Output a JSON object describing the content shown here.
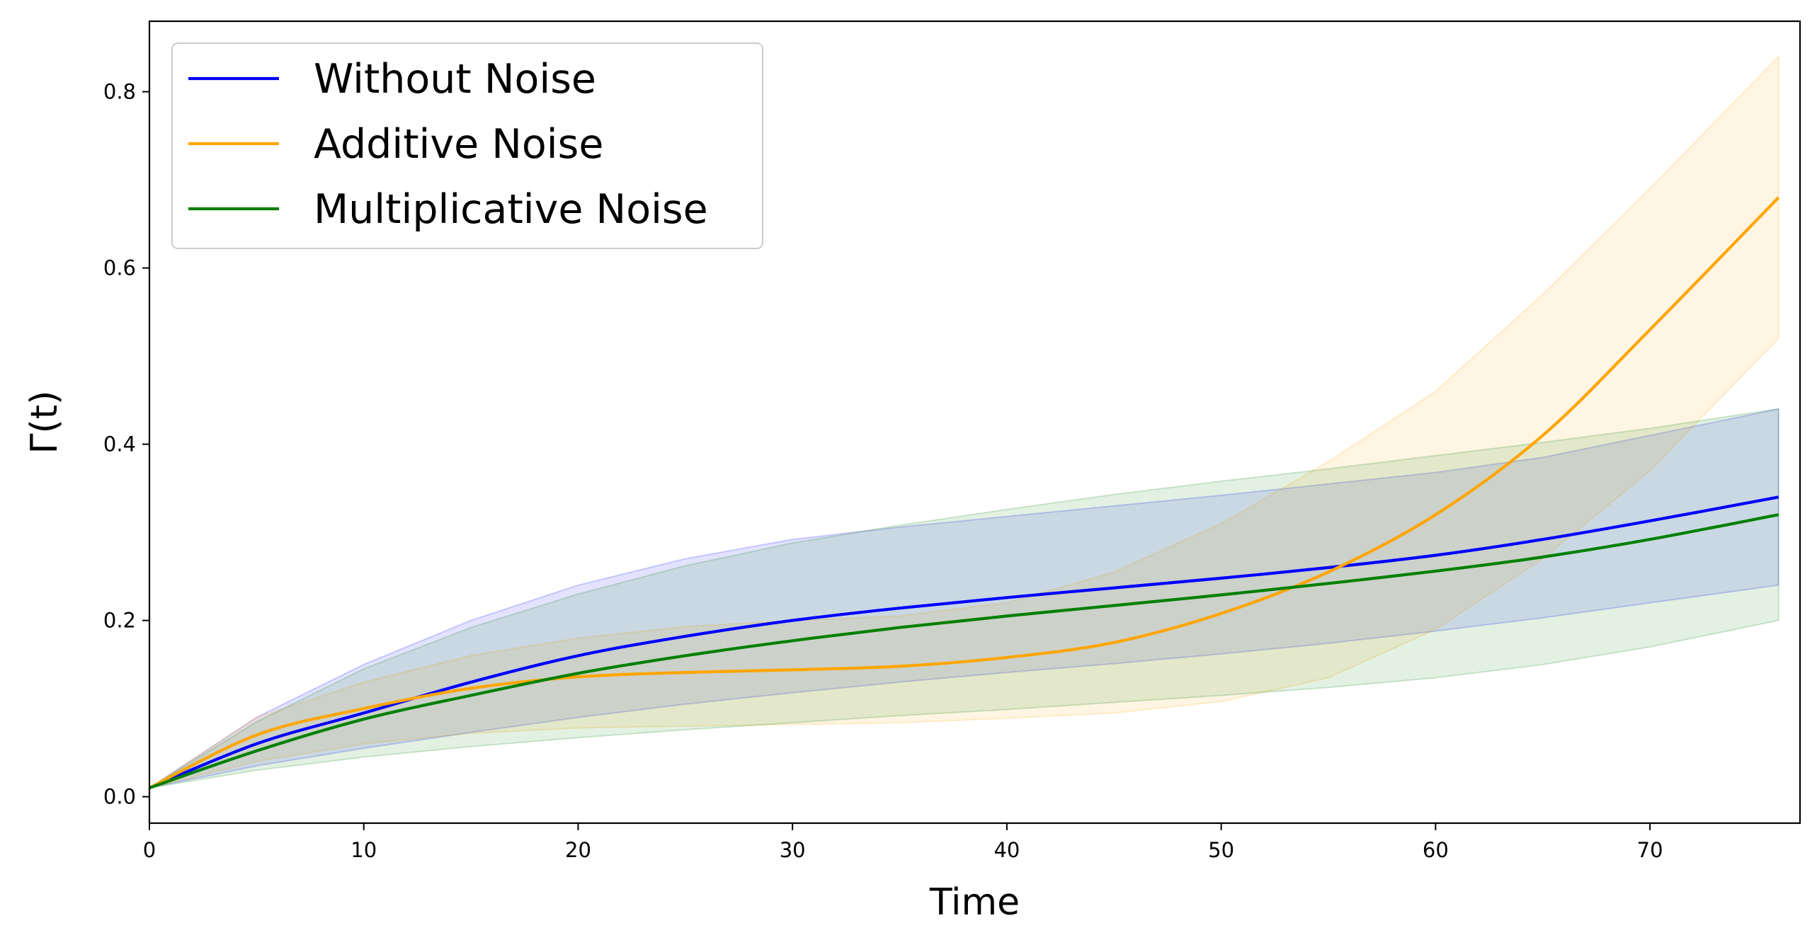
{
  "chart_data": {
    "type": "line",
    "xlabel": "Time",
    "ylabel": "Γ(t)",
    "xlim": [
      0,
      77
    ],
    "ylim": [
      -0.03,
      0.88
    ],
    "xticks": [
      0,
      10,
      20,
      30,
      40,
      50,
      60,
      70
    ],
    "yticks": [
      0.0,
      0.2,
      0.4,
      0.6,
      0.8
    ],
    "grid": false,
    "legend_position": "top-left",
    "x": [
      0,
      5,
      10,
      15,
      20,
      25,
      30,
      35,
      40,
      45,
      50,
      55,
      60,
      65,
      70,
      76
    ],
    "series": [
      {
        "name": "Without Noise",
        "color": "#0000ff",
        "values": [
          0.01,
          0.06,
          0.095,
          0.13,
          0.16,
          0.182,
          0.2,
          0.214,
          0.226,
          0.237,
          0.248,
          0.26,
          0.274,
          0.292,
          0.313,
          0.34
        ],
        "band_lower": [
          0.01,
          0.035,
          0.055,
          0.073,
          0.09,
          0.105,
          0.118,
          0.13,
          0.141,
          0.151,
          0.162,
          0.174,
          0.188,
          0.203,
          0.22,
          0.24
        ],
        "band_upper": [
          0.01,
          0.09,
          0.15,
          0.2,
          0.24,
          0.27,
          0.292,
          0.306,
          0.318,
          0.33,
          0.342,
          0.355,
          0.368,
          0.385,
          0.41,
          0.44
        ]
      },
      {
        "name": "Additive Noise",
        "color": "#ffa500",
        "values": [
          0.01,
          0.07,
          0.1,
          0.123,
          0.136,
          0.141,
          0.144,
          0.148,
          0.158,
          0.175,
          0.208,
          0.255,
          0.32,
          0.41,
          0.53,
          0.68
        ],
        "band_lower": [
          0.01,
          0.04,
          0.06,
          0.072,
          0.078,
          0.08,
          0.082,
          0.084,
          0.089,
          0.095,
          0.108,
          0.135,
          0.19,
          0.27,
          0.37,
          0.52
        ],
        "band_upper": [
          0.01,
          0.09,
          0.13,
          0.16,
          0.18,
          0.193,
          0.2,
          0.205,
          0.22,
          0.255,
          0.31,
          0.38,
          0.46,
          0.57,
          0.69,
          0.84
        ]
      },
      {
        "name": "Multiplicative Noise",
        "color": "#008000",
        "values": [
          0.01,
          0.052,
          0.088,
          0.115,
          0.14,
          0.16,
          0.177,
          0.192,
          0.205,
          0.217,
          0.229,
          0.242,
          0.256,
          0.272,
          0.292,
          0.32
        ],
        "band_lower": [
          0.01,
          0.03,
          0.045,
          0.057,
          0.067,
          0.076,
          0.084,
          0.092,
          0.099,
          0.107,
          0.115,
          0.124,
          0.135,
          0.15,
          0.17,
          0.2
        ],
        "band_upper": [
          0.01,
          0.085,
          0.145,
          0.192,
          0.23,
          0.262,
          0.288,
          0.308,
          0.326,
          0.343,
          0.358,
          0.372,
          0.387,
          0.402,
          0.418,
          0.44
        ]
      }
    ]
  }
}
